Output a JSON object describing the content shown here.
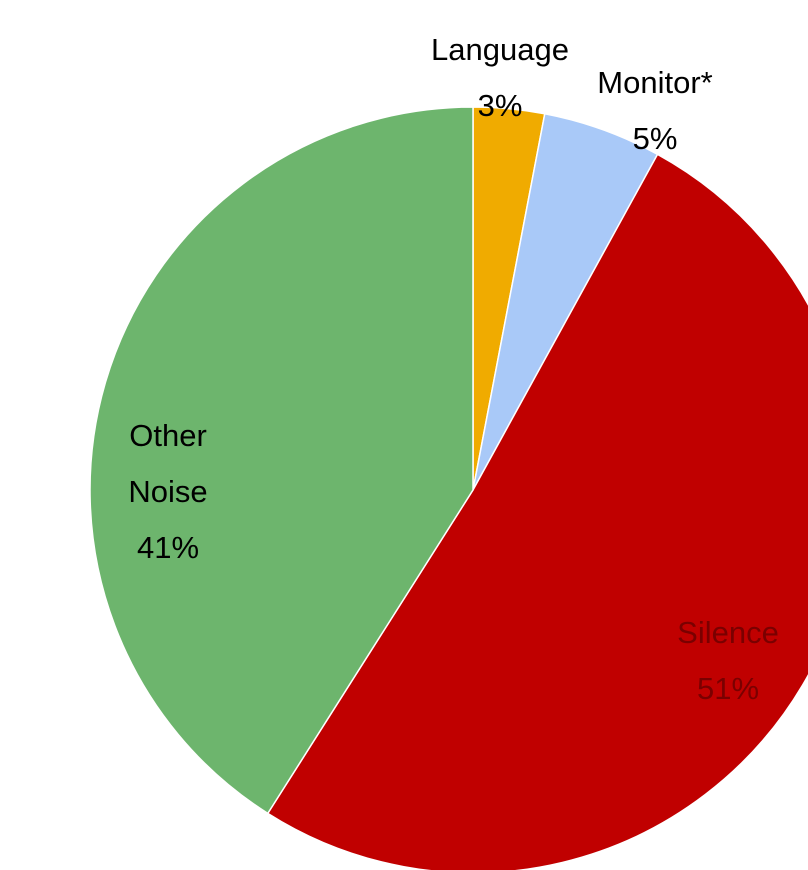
{
  "chart_data": {
    "type": "pie",
    "categories": [
      "Language",
      "Monitor*",
      "Silence",
      "Other Noise"
    ],
    "values": [
      3,
      5,
      51,
      41
    ],
    "value_labels": [
      "3%",
      "5%",
      "51%",
      "41%"
    ],
    "colors": [
      "#f0ab00",
      "#a9c9f8",
      "#c00000",
      "#6db56d"
    ]
  }
}
